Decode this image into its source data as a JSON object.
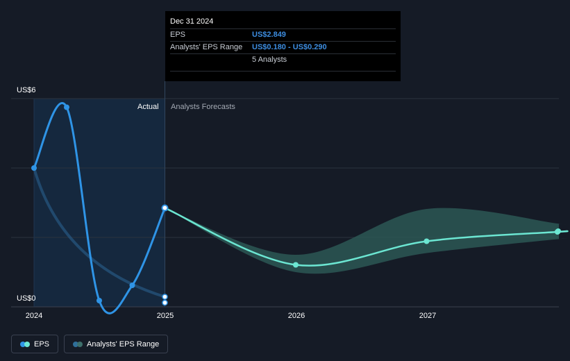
{
  "tooltip": {
    "date": "Dec 31 2024",
    "eps_label": "EPS",
    "eps_value": "US$2.849",
    "range_label": "Analysts' EPS Range",
    "range_value": "US$0.180 - US$0.290",
    "analysts": "5 Analysts"
  },
  "regions": {
    "actual": "Actual",
    "forecast": "Analysts Forecasts"
  },
  "legend": {
    "eps": "EPS",
    "range": "Analysts' EPS Range"
  },
  "colors": {
    "background": "#151b26",
    "eps_actual": "#2f94e6",
    "eps_forecast": "#6ce6d2",
    "range_band": "#2b5755",
    "actual_shade": "#15283e"
  },
  "chart_data": {
    "type": "line",
    "ylim": [
      0,
      6
    ],
    "y_tick_labels": [
      "US$0",
      "US$6"
    ],
    "x_tick_labels": [
      "2024",
      "2025",
      "2026",
      "2027"
    ],
    "series": [
      {
        "name": "EPS",
        "segment": "actual",
        "x": [
          "2024-01-01",
          "2024-04-01",
          "2024-07-01",
          "2024-10-01",
          "2024-12-31"
        ],
        "y": [
          4.0,
          5.75,
          0.18,
          0.62,
          2.849
        ]
      },
      {
        "name": "EPS",
        "segment": "forecast",
        "x": [
          "2024-12-31",
          "2025-12-31",
          "2026-12-31",
          "2027-12-31"
        ],
        "y": [
          2.849,
          1.21,
          1.89,
          2.16
        ]
      },
      {
        "name": "Analysts' EPS Range",
        "x": [
          "2024-12-31",
          "2025-12-31",
          "2026-12-31",
          "2027-12-31"
        ],
        "low": [
          2.849,
          1.0,
          1.55,
          1.95
        ],
        "high": [
          2.849,
          1.5,
          2.82,
          2.4
        ]
      },
      {
        "name": "EPS range (actual period)",
        "x": [
          "2024-01-01",
          "2024-12-31"
        ],
        "y": [
          4.0,
          0.29
        ],
        "y2": [
          4.0,
          0.18
        ]
      }
    ]
  }
}
